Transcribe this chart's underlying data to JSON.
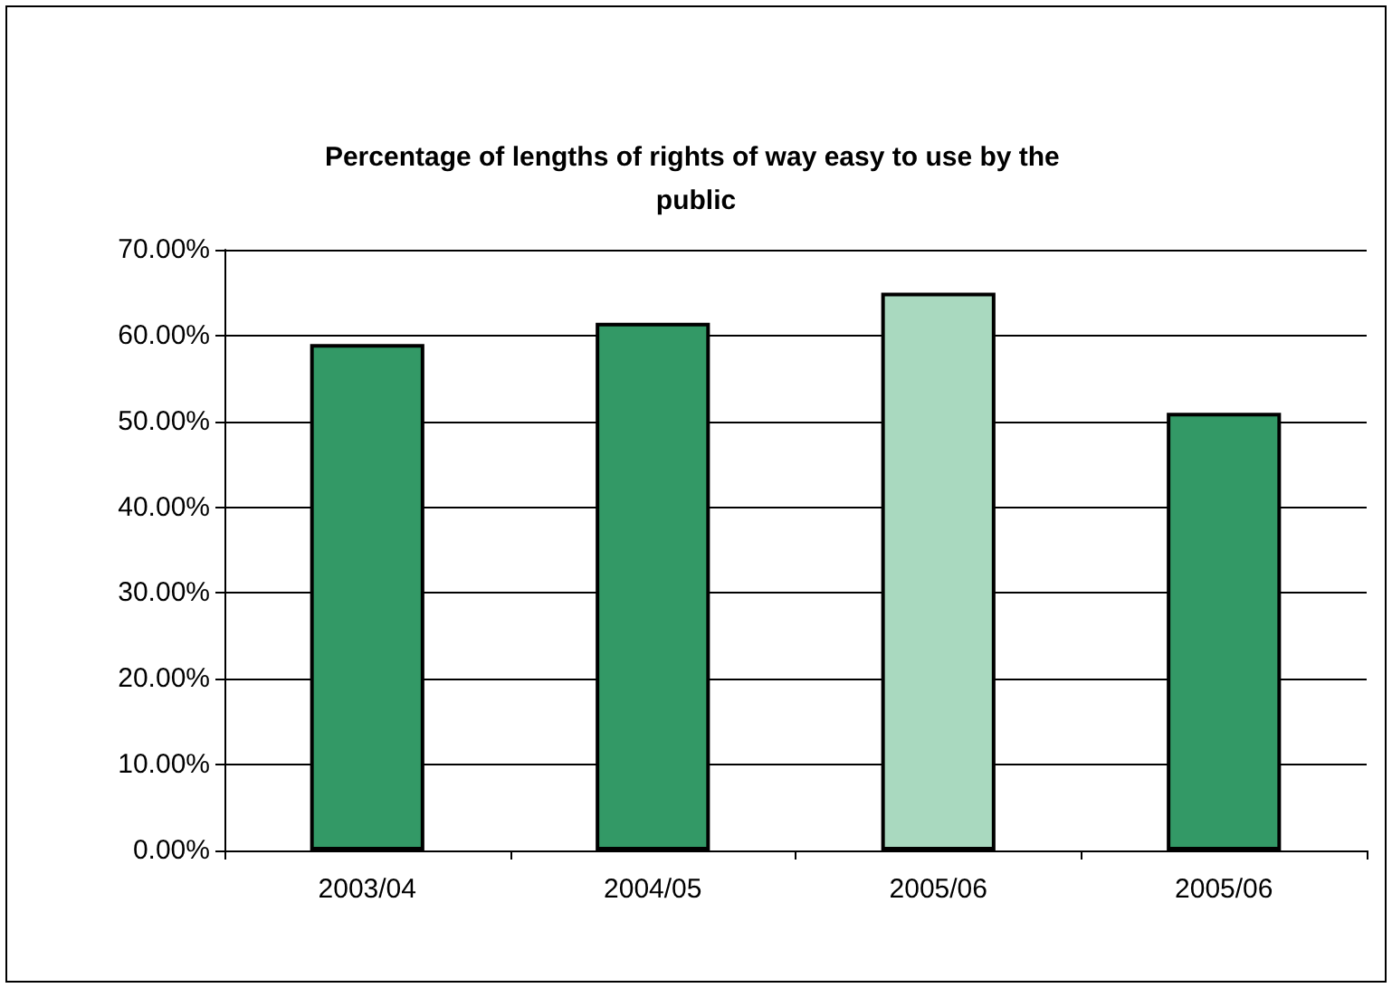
{
  "chart_data": {
    "type": "bar",
    "title": "Percentage of lengths of rights of way easy to use by the public",
    "categories": [
      "2003/04",
      "2004/05",
      "2005/06",
      "2005/06"
    ],
    "values": [
      59,
      61.5,
      65,
      51
    ],
    "colors": [
      "#339966",
      "#339966",
      "#a9d9bf",
      "#339966"
    ],
    "ylim": [
      0,
      70
    ],
    "yticks": [
      {
        "value": 0,
        "label": "0.00%"
      },
      {
        "value": 10,
        "label": "10.00%"
      },
      {
        "value": 20,
        "label": "20.00%"
      },
      {
        "value": 30,
        "label": "30.00%"
      },
      {
        "value": 40,
        "label": "40.00%"
      },
      {
        "value": 50,
        "label": "50.00%"
      },
      {
        "value": 60,
        "label": "60.00%"
      },
      {
        "value": 70,
        "label": "70.00%"
      }
    ],
    "grid": "y"
  }
}
